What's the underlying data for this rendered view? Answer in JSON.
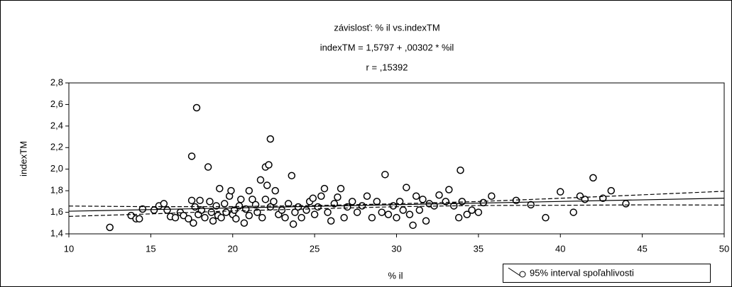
{
  "chart_data": {
    "type": "scatter",
    "title": "závislosť:  % il vs.indexTM",
    "subtitle": "indexTM    = 1,5797 + ,00302 * %il",
    "annotation": "r = ,15392",
    "xlabel": "% il",
    "ylabel": "indexTM",
    "legend": "95% interval spoľahlivosti",
    "xlim": [
      10,
      50
    ],
    "xticks": [
      10,
      15,
      20,
      25,
      30,
      35,
      40,
      45,
      50
    ],
    "ylim": [
      1.4,
      2.8
    ],
    "yticks": [
      {
        "value": 1.4,
        "label": "1,4"
      },
      {
        "value": 1.6,
        "label": "1,6"
      },
      {
        "value": 1.8,
        "label": "1,8"
      },
      {
        "value": 2.0,
        "label": "2,0"
      },
      {
        "value": 2.2,
        "label": "2,2"
      },
      {
        "value": 2.4,
        "label": "2,4"
      },
      {
        "value": 2.6,
        "label": "2,6"
      },
      {
        "value": 2.8,
        "label": "2,8"
      }
    ],
    "color": "#000000",
    "points": {
      "x": [
        12.5,
        13.8,
        14.1,
        14.3,
        14.5,
        15.2,
        15.5,
        15.8,
        16,
        16.2,
        16.5,
        16.8,
        17,
        17.3,
        17.5,
        17.5,
        17.6,
        17.7,
        17.8,
        17.9,
        18,
        18.1,
        18.3,
        18.5,
        18.6,
        18.7,
        18.8,
        19,
        19.1,
        19.2,
        19.3,
        19.5,
        19.6,
        19.8,
        19.9,
        20,
        20.1,
        20.2,
        20.4,
        20.5,
        20.7,
        20.8,
        21,
        21,
        21.2,
        21.4,
        21.5,
        21.7,
        21.8,
        22,
        22,
        22.1,
        22.2,
        22.3,
        22.3,
        22.5,
        22.6,
        22.8,
        23,
        23.2,
        23.4,
        23.6,
        23.7,
        23.8,
        24,
        24.2,
        24.5,
        24.7,
        24.9,
        25,
        25.2,
        25.4,
        25.6,
        25.8,
        26,
        26.2,
        26.4,
        26.6,
        26.8,
        27,
        27.3,
        27.6,
        27.9,
        28.2,
        28.5,
        28.8,
        29.1,
        29.3,
        29.5,
        29.8,
        30,
        30.2,
        30.4,
        30.6,
        30.8,
        31,
        31.2,
        31.4,
        31.6,
        31.8,
        32,
        32.3,
        32.6,
        33,
        33.2,
        33.5,
        33.8,
        33.9,
        34,
        34.3,
        34.6,
        35,
        35.3,
        35.8,
        37.3,
        38.2,
        39.1,
        40,
        40.8,
        41.2,
        41.5,
        42,
        42.6,
        43.1,
        44
      ],
      "y": [
        1.46,
        1.57,
        1.54,
        1.54,
        1.63,
        1.62,
        1.66,
        1.68,
        1.62,
        1.56,
        1.55,
        1.6,
        1.57,
        1.54,
        2.12,
        1.71,
        1.5,
        1.65,
        2.57,
        1.58,
        1.71,
        1.62,
        1.55,
        2.02,
        1.7,
        1.6,
        1.52,
        1.66,
        1.57,
        1.82,
        1.55,
        1.68,
        1.6,
        1.75,
        1.8,
        1.58,
        1.62,
        1.54,
        1.66,
        1.72,
        1.5,
        1.63,
        1.8,
        1.57,
        1.72,
        1.67,
        1.6,
        1.9,
        1.55,
        1.72,
        2.02,
        1.85,
        2.04,
        2.28,
        1.65,
        1.7,
        1.8,
        1.58,
        1.62,
        1.55,
        1.68,
        1.94,
        1.49,
        1.6,
        1.65,
        1.55,
        1.62,
        1.7,
        1.73,
        1.58,
        1.65,
        1.75,
        1.82,
        1.6,
        1.52,
        1.68,
        1.74,
        1.82,
        1.55,
        1.65,
        1.7,
        1.6,
        1.66,
        1.75,
        1.55,
        1.7,
        1.6,
        1.95,
        1.58,
        1.66,
        1.55,
        1.7,
        1.62,
        1.83,
        1.58,
        1.48,
        1.75,
        1.62,
        1.72,
        1.52,
        1.68,
        1.66,
        1.76,
        1.7,
        1.81,
        1.66,
        1.55,
        1.99,
        1.7,
        1.58,
        1.62,
        1.6,
        1.69,
        1.75,
        1.71,
        1.67,
        1.55,
        1.79,
        1.6,
        1.75,
        1.72,
        1.92,
        1.73,
        1.8,
        1.68
      ]
    },
    "fit": {
      "x": [
        10,
        50
      ],
      "y": [
        1.6099,
        1.7307
      ]
    },
    "band_upper": {
      "x": [
        10,
        15,
        20,
        25,
        30,
        35,
        40,
        45,
        50
      ],
      "y": [
        1.658,
        1.652,
        1.653,
        1.663,
        1.679,
        1.7,
        1.73,
        1.762,
        1.795
      ]
    },
    "band_lower": {
      "x": [
        10,
        15,
        20,
        25,
        30,
        35,
        40,
        45,
        50
      ],
      "y": [
        1.562,
        1.585,
        1.613,
        1.632,
        1.652,
        1.663,
        1.665,
        1.669,
        1.667
      ]
    }
  }
}
